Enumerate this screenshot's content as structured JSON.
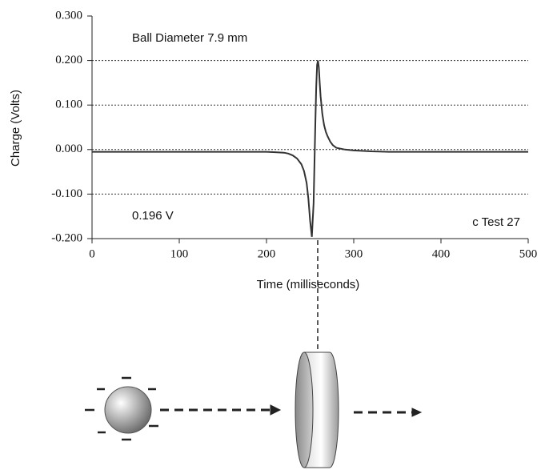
{
  "chart_data": {
    "type": "line",
    "xlabel": "Time (milliseconds)",
    "ylabel": "Charge (Volts)",
    "annotations": [
      "Ball Diameter 7.9 mm",
      "0.196 V",
      "c Test 27"
    ],
    "x": [
      0,
      20,
      40,
      60,
      80,
      100,
      120,
      140,
      160,
      180,
      200,
      210,
      220,
      225,
      230,
      235,
      240,
      243,
      246,
      248,
      250,
      252,
      254,
      255,
      256,
      257,
      258,
      259,
      260,
      261,
      262,
      264,
      266,
      268,
      270,
      273,
      276,
      280,
      290,
      300,
      320,
      340,
      360,
      380,
      400,
      420,
      440,
      460,
      480,
      500
    ],
    "series": [
      {
        "color": "#333333",
        "values": [
          -0.005,
          -0.005,
          -0.005,
          -0.005,
          -0.005,
          -0.005,
          -0.005,
          -0.005,
          -0.005,
          -0.005,
          -0.005,
          -0.006,
          -0.007,
          -0.009,
          -0.013,
          -0.02,
          -0.033,
          -0.048,
          -0.075,
          -0.11,
          -0.16,
          -0.196,
          -0.12,
          -0.03,
          0.06,
          0.14,
          0.19,
          0.2,
          0.185,
          0.15,
          0.12,
          0.08,
          0.055,
          0.04,
          0.03,
          0.018,
          0.01,
          0.004,
          0,
          -0.002,
          -0.004,
          -0.005,
          -0.005,
          -0.005,
          -0.005,
          -0.005,
          -0.005,
          -0.005,
          -0.005,
          -0.005
        ]
      }
    ],
    "xlim": [
      0,
      500
    ],
    "xticks": [
      0,
      100,
      200,
      300,
      400,
      500
    ],
    "ylim": [
      -0.2,
      0.3
    ],
    "yticks": [
      {
        "value": 0.3,
        "label": "0.300"
      },
      {
        "value": 0.2,
        "label": "0.200"
      },
      {
        "value": 0.1,
        "label": "0.100"
      },
      {
        "value": 0,
        "label": "0.000"
      },
      {
        "value": -0.1,
        "label": "-0.100"
      },
      {
        "value": -0.2,
        "label": "-0.200"
      }
    ],
    "grid": true
  }
}
